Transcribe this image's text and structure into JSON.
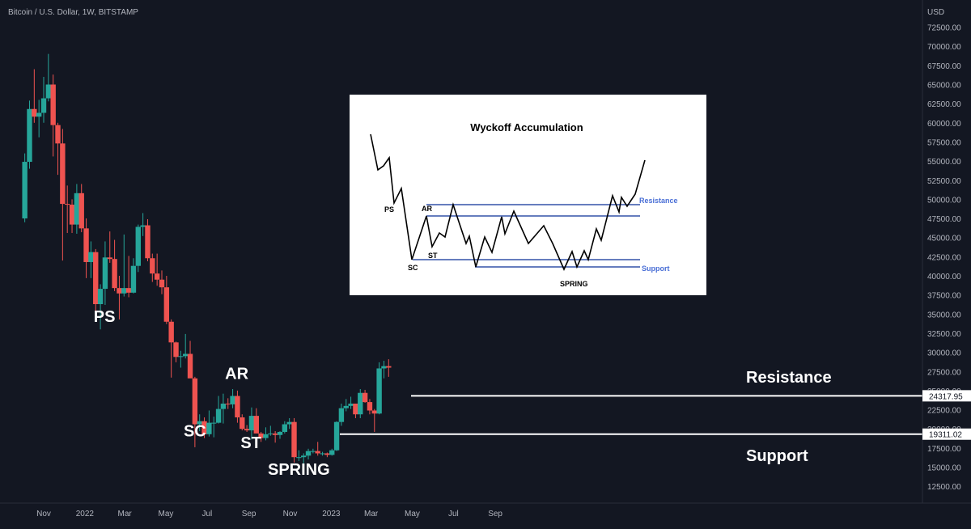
{
  "header": {
    "symbol": "Bitcoin / U.S. Dollar, 1W, BITSTAMP"
  },
  "price_axis": {
    "currency": "USD",
    "ticks": [
      72500,
      70000,
      67500,
      65000,
      62500,
      60000,
      57500,
      55000,
      52500,
      50000,
      47500,
      45000,
      42500,
      40000,
      37500,
      35000,
      32500,
      30000,
      27500,
      25000,
      22500,
      20000,
      17500,
      15000,
      12500
    ]
  },
  "time_axis": {
    "labels": [
      {
        "text": "Nov",
        "date": "2021-11-01"
      },
      {
        "text": "2022",
        "date": "2022-01-01"
      },
      {
        "text": "Mar",
        "date": "2022-03-01"
      },
      {
        "text": "May",
        "date": "2022-05-01"
      },
      {
        "text": "Jul",
        "date": "2022-07-01"
      },
      {
        "text": "Sep",
        "date": "2022-09-01"
      },
      {
        "text": "Nov",
        "date": "2022-11-01"
      },
      {
        "text": "2023",
        "date": "2023-01-01"
      },
      {
        "text": "Mar",
        "date": "2023-03-01"
      },
      {
        "text": "May",
        "date": "2023-05-01"
      },
      {
        "text": "Jul",
        "date": "2023-07-01"
      },
      {
        "text": "Sep",
        "date": "2023-09-01"
      }
    ]
  },
  "levels": {
    "resistance": {
      "value": 24317.95,
      "label": "24317.95",
      "text": "Resistance"
    },
    "support": {
      "value": 19311.02,
      "label": "19311.02",
      "text": "Support"
    }
  },
  "annotations": [
    {
      "text": "PS",
      "date": "2022-01-30",
      "price": 34000
    },
    {
      "text": "SC",
      "date": "2022-06-13",
      "price": 19000
    },
    {
      "text": "AR",
      "date": "2022-08-14",
      "price": 26500
    },
    {
      "text": "ST",
      "date": "2022-09-04",
      "price": 17500
    },
    {
      "text": "SPRING",
      "date": "2022-11-14",
      "price": 14000
    }
  ],
  "colors": {
    "up": "#26a69a",
    "down": "#ef5350",
    "background": "#131722",
    "text": "#d1d4dc",
    "level_line": "#ffffff"
  },
  "chart_data": {
    "type": "candlestick",
    "title": "Bitcoin / U.S. Dollar, 1W, BITSTAMP",
    "ylabel": "USD",
    "interval": "1W",
    "ylim": [
      10000,
      74500
    ],
    "xlim": [
      "2021-10-01",
      "2023-09-30"
    ],
    "grid": false,
    "candles": [
      {
        "date": "2021-10-04",
        "open": 47500,
        "high": 56000,
        "low": 47000,
        "close": 54900
      },
      {
        "date": "2021-10-11",
        "open": 54900,
        "high": 62900,
        "low": 54000,
        "close": 61800
      },
      {
        "date": "2021-10-18",
        "open": 61800,
        "high": 67000,
        "low": 60000,
        "close": 60800
      },
      {
        "date": "2021-10-25",
        "open": 60800,
        "high": 63000,
        "low": 58100,
        "close": 61300
      },
      {
        "date": "2021-11-01",
        "open": 61300,
        "high": 66000,
        "low": 60000,
        "close": 63200
      },
      {
        "date": "2021-11-08",
        "open": 63200,
        "high": 69000,
        "low": 62800,
        "close": 65000
      },
      {
        "date": "2021-11-15",
        "open": 65000,
        "high": 66300,
        "low": 55600,
        "close": 59700
      },
      {
        "date": "2021-11-22",
        "open": 59700,
        "high": 60000,
        "low": 53200,
        "close": 57300
      },
      {
        "date": "2021-11-29",
        "open": 57300,
        "high": 59200,
        "low": 42000,
        "close": 49400
      },
      {
        "date": "2021-12-06",
        "open": 49400,
        "high": 51800,
        "low": 45600,
        "close": 49300
      },
      {
        "date": "2021-12-13",
        "open": 49300,
        "high": 50000,
        "low": 45600,
        "close": 46700
      },
      {
        "date": "2021-12-20",
        "open": 46700,
        "high": 52000,
        "low": 45500,
        "close": 50800
      },
      {
        "date": "2021-12-27",
        "open": 50800,
        "high": 52000,
        "low": 45700,
        "close": 46200
      },
      {
        "date": "2022-01-03",
        "open": 46200,
        "high": 47500,
        "low": 39700,
        "close": 41800
      },
      {
        "date": "2022-01-10",
        "open": 41800,
        "high": 44500,
        "low": 39700,
        "close": 43100
      },
      {
        "date": "2022-01-17",
        "open": 43100,
        "high": 43500,
        "low": 34000,
        "close": 36300
      },
      {
        "date": "2022-01-24",
        "open": 36300,
        "high": 38900,
        "low": 33000,
        "close": 38300
      },
      {
        "date": "2022-01-31",
        "open": 38300,
        "high": 44500,
        "low": 36200,
        "close": 42400
      },
      {
        "date": "2022-02-07",
        "open": 42400,
        "high": 45800,
        "low": 41700,
        "close": 42200
      },
      {
        "date": "2022-02-14",
        "open": 42200,
        "high": 44700,
        "low": 38000,
        "close": 38400
      },
      {
        "date": "2022-02-21",
        "open": 38400,
        "high": 40000,
        "low": 34300,
        "close": 37700
      },
      {
        "date": "2022-02-28",
        "open": 37700,
        "high": 45400,
        "low": 37300,
        "close": 38400
      },
      {
        "date": "2022-03-07",
        "open": 38400,
        "high": 42600,
        "low": 37200,
        "close": 37800
      },
      {
        "date": "2022-03-14",
        "open": 37800,
        "high": 42300,
        "low": 37700,
        "close": 41300
      },
      {
        "date": "2022-03-21",
        "open": 41300,
        "high": 46700,
        "low": 40500,
        "close": 46400
      },
      {
        "date": "2022-03-28",
        "open": 46400,
        "high": 48200,
        "low": 45200,
        "close": 46600
      },
      {
        "date": "2022-04-04",
        "open": 46600,
        "high": 47400,
        "low": 41900,
        "close": 42300
      },
      {
        "date": "2022-04-11",
        "open": 42300,
        "high": 42900,
        "low": 39200,
        "close": 40300
      },
      {
        "date": "2022-04-18",
        "open": 40300,
        "high": 42900,
        "low": 38700,
        "close": 39500
      },
      {
        "date": "2022-04-25",
        "open": 39500,
        "high": 40700,
        "low": 37600,
        "close": 38500
      },
      {
        "date": "2022-05-02",
        "open": 38500,
        "high": 40000,
        "low": 33700,
        "close": 34000
      },
      {
        "date": "2022-05-09",
        "open": 34000,
        "high": 34300,
        "low": 26700,
        "close": 31300
      },
      {
        "date": "2022-05-16",
        "open": 31300,
        "high": 31400,
        "low": 28700,
        "close": 29400
      },
      {
        "date": "2022-05-23",
        "open": 29400,
        "high": 30200,
        "low": 28000,
        "close": 29500
      },
      {
        "date": "2022-05-30",
        "open": 29500,
        "high": 32400,
        "low": 29200,
        "close": 29800
      },
      {
        "date": "2022-06-06",
        "open": 29800,
        "high": 31500,
        "low": 26800,
        "close": 26600
      },
      {
        "date": "2022-06-13",
        "open": 26600,
        "high": 26800,
        "low": 17600,
        "close": 20600
      },
      {
        "date": "2022-06-20",
        "open": 20600,
        "high": 21900,
        "low": 19700,
        "close": 21000
      },
      {
        "date": "2022-06-27",
        "open": 21000,
        "high": 21500,
        "low": 18800,
        "close": 19300
      },
      {
        "date": "2022-07-04",
        "open": 19300,
        "high": 22400,
        "low": 19000,
        "close": 20800
      },
      {
        "date": "2022-07-11",
        "open": 20800,
        "high": 21600,
        "low": 18900,
        "close": 20800
      },
      {
        "date": "2022-07-18",
        "open": 20800,
        "high": 24300,
        "low": 20700,
        "close": 22600
      },
      {
        "date": "2022-07-25",
        "open": 22600,
        "high": 24600,
        "low": 20700,
        "close": 23300
      },
      {
        "date": "2022-08-01",
        "open": 23300,
        "high": 24000,
        "low": 22600,
        "close": 23200
      },
      {
        "date": "2022-08-08",
        "open": 23200,
        "high": 25200,
        "low": 22700,
        "close": 24300
      },
      {
        "date": "2022-08-15",
        "open": 24300,
        "high": 25000,
        "low": 20800,
        "close": 21500
      },
      {
        "date": "2022-08-22",
        "open": 21500,
        "high": 21900,
        "low": 19800,
        "close": 20000
      },
      {
        "date": "2022-08-29",
        "open": 20000,
        "high": 20500,
        "low": 19600,
        "close": 19800
      },
      {
        "date": "2022-09-05",
        "open": 19800,
        "high": 22800,
        "low": 18600,
        "close": 21700
      },
      {
        "date": "2022-09-12",
        "open": 21700,
        "high": 22700,
        "low": 19600,
        "close": 19400
      },
      {
        "date": "2022-09-19",
        "open": 19400,
        "high": 19600,
        "low": 18300,
        "close": 18800
      },
      {
        "date": "2022-09-26",
        "open": 18800,
        "high": 20200,
        "low": 18500,
        "close": 19300
      },
      {
        "date": "2022-10-03",
        "open": 19300,
        "high": 20400,
        "low": 19100,
        "close": 19400
      },
      {
        "date": "2022-10-10",
        "open": 19400,
        "high": 19700,
        "low": 18200,
        "close": 19200
      },
      {
        "date": "2022-10-17",
        "open": 19200,
        "high": 19700,
        "low": 18700,
        "close": 19600
      },
      {
        "date": "2022-10-24",
        "open": 19600,
        "high": 21000,
        "low": 19400,
        "close": 20600
      },
      {
        "date": "2022-10-31",
        "open": 20600,
        "high": 21400,
        "low": 20000,
        "close": 20900
      },
      {
        "date": "2022-11-07",
        "open": 20900,
        "high": 21400,
        "low": 15600,
        "close": 16300
      },
      {
        "date": "2022-11-14",
        "open": 16300,
        "high": 17200,
        "low": 15800,
        "close": 16300
      },
      {
        "date": "2022-11-21",
        "open": 16300,
        "high": 16800,
        "low": 15500,
        "close": 16500
      },
      {
        "date": "2022-11-28",
        "open": 16500,
        "high": 17400,
        "low": 16000,
        "close": 17100
      },
      {
        "date": "2022-12-05",
        "open": 17100,
        "high": 17400,
        "low": 16800,
        "close": 17100
      },
      {
        "date": "2022-12-12",
        "open": 17100,
        "high": 18300,
        "low": 16500,
        "close": 16800
      },
      {
        "date": "2022-12-19",
        "open": 16800,
        "high": 17000,
        "low": 16500,
        "close": 16800
      },
      {
        "date": "2022-12-26",
        "open": 16800,
        "high": 16900,
        "low": 16300,
        "close": 16600
      },
      {
        "date": "2023-01-02",
        "open": 16600,
        "high": 17400,
        "low": 16500,
        "close": 17200
      },
      {
        "date": "2023-01-09",
        "open": 17200,
        "high": 21000,
        "low": 17100,
        "close": 20900
      },
      {
        "date": "2023-01-16",
        "open": 20900,
        "high": 23300,
        "low": 20400,
        "close": 22700
      },
      {
        "date": "2023-01-23",
        "open": 22700,
        "high": 23900,
        "low": 22300,
        "close": 23000
      },
      {
        "date": "2023-01-30",
        "open": 23000,
        "high": 24200,
        "low": 22600,
        "close": 23300
      },
      {
        "date": "2023-02-06",
        "open": 23300,
        "high": 23300,
        "low": 21400,
        "close": 21900
      },
      {
        "date": "2023-02-13",
        "open": 21900,
        "high": 25200,
        "low": 21400,
        "close": 24700
      },
      {
        "date": "2023-02-20",
        "open": 24700,
        "high": 25100,
        "low": 23400,
        "close": 23500
      },
      {
        "date": "2023-02-27",
        "open": 23500,
        "high": 23900,
        "low": 21900,
        "close": 22400
      },
      {
        "date": "2023-03-06",
        "open": 22400,
        "high": 22600,
        "low": 19600,
        "close": 22000
      },
      {
        "date": "2023-03-13",
        "open": 22000,
        "high": 28700,
        "low": 21900,
        "close": 27900
      },
      {
        "date": "2023-03-20",
        "open": 27900,
        "high": 28900,
        "low": 26600,
        "close": 28200
      },
      {
        "date": "2023-03-27",
        "open": 28200,
        "high": 29100,
        "low": 26800,
        "close": 28000
      }
    ]
  }
}
